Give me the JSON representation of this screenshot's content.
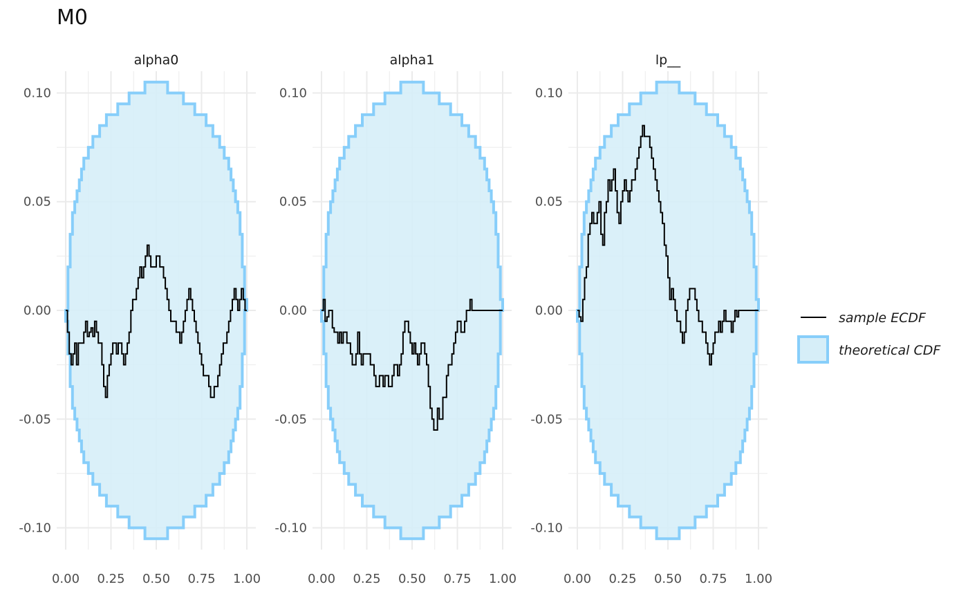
{
  "title": "M0",
  "chart_data": {
    "type": "line",
    "facets": [
      {
        "name": "alpha0",
        "sample_ecdf": {
          "x": [
            0.0,
            0.01,
            0.02,
            0.03,
            0.04,
            0.05,
            0.06,
            0.07,
            0.08,
            0.09,
            0.1,
            0.11,
            0.12,
            0.13,
            0.14,
            0.15,
            0.16,
            0.17,
            0.18,
            0.19,
            0.2,
            0.21,
            0.22,
            0.23,
            0.24,
            0.25,
            0.26,
            0.27,
            0.28,
            0.29,
            0.3,
            0.31,
            0.32,
            0.33,
            0.34,
            0.35,
            0.36,
            0.37,
            0.38,
            0.39,
            0.4,
            0.41,
            0.42,
            0.43,
            0.44,
            0.45,
            0.46,
            0.47,
            0.48,
            0.49,
            0.5,
            0.51,
            0.52,
            0.53,
            0.54,
            0.55,
            0.56,
            0.57,
            0.58,
            0.59,
            0.6,
            0.61,
            0.62,
            0.63,
            0.64,
            0.65,
            0.66,
            0.67,
            0.68,
            0.69,
            0.7,
            0.71,
            0.72,
            0.73,
            0.74,
            0.75,
            0.76,
            0.77,
            0.78,
            0.79,
            0.8,
            0.81,
            0.82,
            0.83,
            0.84,
            0.85,
            0.86,
            0.87,
            0.88,
            0.89,
            0.9,
            0.91,
            0.92,
            0.93,
            0.94,
            0.95,
            0.96,
            0.97,
            0.98,
            0.99,
            1.0
          ],
          "y": [
            0.0,
            -0.01,
            -0.02,
            -0.025,
            -0.02,
            -0.015,
            -0.025,
            -0.015,
            -0.015,
            -0.015,
            -0.01,
            -0.005,
            -0.012,
            -0.01,
            -0.008,
            -0.012,
            -0.005,
            -0.01,
            -0.015,
            -0.015,
            -0.025,
            -0.035,
            -0.04,
            -0.03,
            -0.025,
            -0.02,
            -0.015,
            -0.015,
            -0.02,
            -0.015,
            -0.015,
            -0.02,
            -0.025,
            -0.02,
            -0.015,
            -0.01,
            0.0,
            0.005,
            0.005,
            0.01,
            0.015,
            0.02,
            0.015,
            0.02,
            0.025,
            0.03,
            0.025,
            0.02,
            0.02,
            0.02,
            0.025,
            0.025,
            0.02,
            0.02,
            0.015,
            0.01,
            0.005,
            0.0,
            -0.005,
            -0.005,
            -0.005,
            -0.01,
            -0.01,
            -0.015,
            -0.01,
            -0.005,
            0.0,
            0.005,
            0.01,
            0.005,
            0.0,
            -0.005,
            -0.01,
            -0.015,
            -0.02,
            -0.025,
            -0.03,
            -0.03,
            -0.03,
            -0.035,
            -0.04,
            -0.04,
            -0.035,
            -0.035,
            -0.03,
            -0.025,
            -0.02,
            -0.015,
            -0.015,
            -0.01,
            -0.005,
            0.0,
            0.005,
            0.01,
            0.005,
            0.0,
            0.005,
            0.01,
            0.005,
            0.0,
            0.0
          ]
        }
      },
      {
        "name": "alpha1",
        "sample_ecdf": {
          "x": [
            0.0,
            0.01,
            0.02,
            0.03,
            0.04,
            0.05,
            0.06,
            0.07,
            0.08,
            0.09,
            0.1,
            0.11,
            0.12,
            0.13,
            0.14,
            0.15,
            0.16,
            0.17,
            0.18,
            0.19,
            0.2,
            0.21,
            0.22,
            0.23,
            0.24,
            0.25,
            0.26,
            0.27,
            0.28,
            0.29,
            0.3,
            0.31,
            0.32,
            0.33,
            0.34,
            0.35,
            0.36,
            0.37,
            0.38,
            0.39,
            0.4,
            0.41,
            0.42,
            0.43,
            0.44,
            0.45,
            0.46,
            0.47,
            0.48,
            0.49,
            0.5,
            0.51,
            0.52,
            0.53,
            0.54,
            0.55,
            0.56,
            0.57,
            0.58,
            0.59,
            0.6,
            0.61,
            0.62,
            0.63,
            0.64,
            0.65,
            0.66,
            0.67,
            0.68,
            0.69,
            0.7,
            0.71,
            0.72,
            0.73,
            0.74,
            0.75,
            0.76,
            0.77,
            0.78,
            0.79,
            0.8,
            0.81,
            0.82,
            0.83,
            0.84,
            0.85,
            0.86,
            0.87,
            0.88,
            0.89,
            0.9,
            0.91,
            0.92,
            0.93,
            0.94,
            0.95,
            0.96,
            0.97,
            0.98,
            0.99,
            1.0
          ],
          "y": [
            0.0,
            0.005,
            -0.005,
            -0.003,
            0.0,
            0.0,
            -0.008,
            -0.01,
            -0.01,
            -0.015,
            -0.01,
            -0.015,
            -0.01,
            -0.01,
            -0.015,
            -0.015,
            -0.02,
            -0.025,
            -0.025,
            -0.02,
            -0.01,
            -0.02,
            -0.025,
            -0.02,
            -0.02,
            -0.02,
            -0.02,
            -0.025,
            -0.025,
            -0.03,
            -0.035,
            -0.035,
            -0.03,
            -0.03,
            -0.035,
            -0.03,
            -0.03,
            -0.035,
            -0.035,
            -0.03,
            -0.025,
            -0.025,
            -0.03,
            -0.025,
            -0.02,
            -0.01,
            -0.005,
            -0.005,
            -0.01,
            -0.015,
            -0.02,
            -0.015,
            -0.02,
            -0.025,
            -0.02,
            -0.015,
            -0.015,
            -0.02,
            -0.025,
            -0.035,
            -0.045,
            -0.05,
            -0.055,
            -0.055,
            -0.045,
            -0.05,
            -0.05,
            -0.04,
            -0.04,
            -0.03,
            -0.025,
            -0.025,
            -0.02,
            -0.015,
            -0.01,
            -0.005,
            -0.005,
            -0.01,
            -0.01,
            -0.005,
            0.0,
            0.0,
            0.005,
            0.0,
            0.0,
            0.0,
            0.0,
            0.0,
            0.0,
            0.0,
            0.0,
            0.0,
            0.0,
            0.0,
            0.0,
            0.0,
            0.0,
            0.0,
            0.0,
            0.0,
            0.0
          ]
        }
      },
      {
        "name": "lp__",
        "sample_ecdf": {
          "x": [
            0.0,
            0.01,
            0.02,
            0.03,
            0.04,
            0.05,
            0.06,
            0.07,
            0.08,
            0.09,
            0.1,
            0.11,
            0.12,
            0.13,
            0.14,
            0.15,
            0.16,
            0.17,
            0.18,
            0.19,
            0.2,
            0.21,
            0.22,
            0.23,
            0.24,
            0.25,
            0.26,
            0.27,
            0.28,
            0.29,
            0.3,
            0.31,
            0.32,
            0.33,
            0.34,
            0.35,
            0.36,
            0.37,
            0.38,
            0.39,
            0.4,
            0.41,
            0.42,
            0.43,
            0.44,
            0.45,
            0.46,
            0.47,
            0.48,
            0.49,
            0.5,
            0.51,
            0.52,
            0.53,
            0.54,
            0.55,
            0.56,
            0.57,
            0.58,
            0.59,
            0.6,
            0.61,
            0.62,
            0.63,
            0.64,
            0.65,
            0.66,
            0.67,
            0.68,
            0.69,
            0.7,
            0.71,
            0.72,
            0.73,
            0.74,
            0.75,
            0.76,
            0.77,
            0.78,
            0.79,
            0.8,
            0.81,
            0.82,
            0.83,
            0.84,
            0.85,
            0.86,
            0.87,
            0.88,
            0.89,
            0.9,
            0.91,
            0.92,
            0.93,
            0.94,
            0.95,
            0.96,
            0.97,
            0.98,
            0.99,
            1.0
          ],
          "y": [
            0.0,
            -0.003,
            -0.005,
            0.005,
            0.015,
            0.02,
            0.035,
            0.04,
            0.045,
            0.04,
            0.04,
            0.045,
            0.05,
            0.035,
            0.03,
            0.045,
            0.05,
            0.06,
            0.055,
            0.06,
            0.065,
            0.055,
            0.045,
            0.04,
            0.05,
            0.055,
            0.06,
            0.055,
            0.05,
            0.055,
            0.06,
            0.06,
            0.065,
            0.07,
            0.075,
            0.08,
            0.085,
            0.08,
            0.08,
            0.08,
            0.075,
            0.07,
            0.065,
            0.06,
            0.055,
            0.05,
            0.045,
            0.04,
            0.03,
            0.025,
            0.015,
            0.005,
            0.01,
            0.005,
            0.0,
            -0.005,
            -0.005,
            -0.01,
            -0.015,
            -0.01,
            0.0,
            0.005,
            0.01,
            0.01,
            0.01,
            0.005,
            0.0,
            -0.005,
            -0.005,
            -0.01,
            -0.01,
            -0.015,
            -0.02,
            -0.025,
            -0.02,
            -0.015,
            -0.01,
            -0.01,
            -0.005,
            -0.01,
            -0.005,
            0.0,
            -0.005,
            -0.005,
            -0.005,
            -0.01,
            -0.005,
            0.0,
            -0.003,
            0.0,
            0.0,
            0.0,
            0.0,
            0.0,
            0.0,
            0.0,
            0.0,
            0.0,
            0.0,
            0.0,
            0.0
          ]
        }
      }
    ],
    "theoretical_band": {
      "x": [
        0.0,
        0.0125,
        0.025,
        0.0375,
        0.05,
        0.0625,
        0.075,
        0.0875,
        0.1,
        0.125,
        0.15,
        0.1875,
        0.225,
        0.2875,
        0.35,
        0.4375,
        0.5625,
        0.65,
        0.7125,
        0.775,
        0.8125,
        0.85,
        0.875,
        0.9,
        0.9125,
        0.925,
        0.9375,
        0.95,
        0.9625,
        0.975,
        0.9875,
        1.0
      ],
      "upper": [
        0.0,
        0.02,
        0.035,
        0.045,
        0.05,
        0.055,
        0.06,
        0.065,
        0.07,
        0.075,
        0.08,
        0.085,
        0.09,
        0.095,
        0.1,
        0.105,
        0.1,
        0.095,
        0.09,
        0.085,
        0.08,
        0.075,
        0.07,
        0.065,
        0.06,
        0.055,
        0.05,
        0.045,
        0.035,
        0.02,
        0.005,
        0.0
      ],
      "lower": [
        0.0,
        -0.005,
        -0.02,
        -0.035,
        -0.045,
        -0.05,
        -0.055,
        -0.06,
        -0.065,
        -0.07,
        -0.075,
        -0.08,
        -0.085,
        -0.09,
        -0.095,
        -0.1,
        -0.105,
        -0.1,
        -0.095,
        -0.09,
        -0.085,
        -0.08,
        -0.075,
        -0.07,
        -0.065,
        -0.06,
        -0.055,
        -0.05,
        -0.045,
        -0.035,
        -0.02,
        0.0
      ]
    },
    "xlim": [
      0,
      1
    ],
    "ylim": [
      -0.11,
      0.11
    ],
    "x_ticks": [
      "0.00",
      "0.25",
      "0.50",
      "0.75",
      "1.00"
    ],
    "x_tick_values": [
      0,
      0.25,
      0.5,
      0.75,
      1.0
    ],
    "y_ticks": [
      "0.10",
      "0.05",
      "0.00",
      "-0.05",
      "-0.10"
    ],
    "y_tick_values": [
      0.1,
      0.05,
      0.0,
      -0.05,
      -0.1
    ],
    "grid": true,
    "legend": {
      "placement": "right",
      "entries": [
        "sample ECDF",
        "theoretical CDF"
      ]
    },
    "colors": {
      "band_fill": "#d6eef8",
      "band_border": "#87cefa",
      "line": "#000000",
      "grid": "#ebebeb"
    }
  }
}
